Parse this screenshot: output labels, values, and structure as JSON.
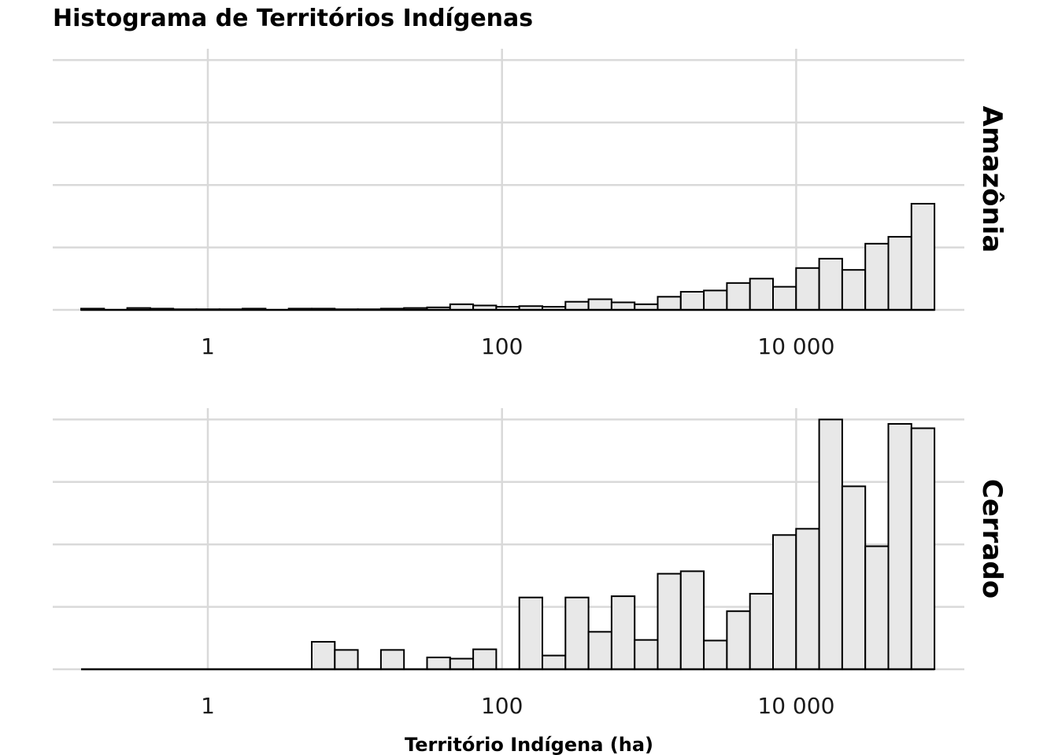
{
  "chart_data": {
    "type": "histogram",
    "title": "Histograma de Territórios Indígenas",
    "xlabel": "Território Indígena (ha)",
    "x_scale": "log10",
    "x_range_log10": [
      -1.05,
      3.925
    ],
    "bin_width_log10": 0.13,
    "bin_start_log10": -0.86,
    "x_ticks": [
      {
        "log10": 0,
        "label": "1"
      },
      {
        "log10": 2,
        "label": "100"
      },
      {
        "log10": 4,
        "label": "10 000"
      }
    ],
    "y_ticks": [
      0,
      1,
      2,
      3,
      4
    ],
    "y_range": [
      0,
      4.2
    ],
    "bar_fill": "#e8e8e8",
    "bar_stroke": "#000000",
    "grid_color": "#d9d9d9",
    "panels": [
      {
        "name": "Amazônia",
        "values": [
          0.02,
          0,
          0.03,
          0.02,
          0.01,
          0.01,
          0.01,
          0.02,
          0,
          0.02,
          0.02,
          0.01,
          0.01,
          0.02,
          0.03,
          0.04,
          0.09,
          0.07,
          0.05,
          0.06,
          0.05,
          0.13,
          0.17,
          0.12,
          0.09,
          0.21,
          0.29,
          0.31,
          0.43,
          0.5,
          0.37,
          0.67,
          0.82,
          0.64,
          1.06,
          1.17,
          1.7
        ]
      },
      {
        "name": "Cerrado",
        "values": [
          0,
          0,
          0,
          0,
          0,
          0,
          0,
          0,
          0,
          0,
          0.44,
          0.31,
          0,
          0.31,
          0,
          0.19,
          0.17,
          0.32,
          0,
          1.15,
          0.22,
          1.15,
          0.6,
          1.17,
          0.47,
          1.53,
          1.57,
          0.46,
          0.93,
          1.21,
          2.15,
          2.25,
          4.0,
          2.93,
          1.97,
          3.93,
          3.86
        ]
      }
    ]
  }
}
